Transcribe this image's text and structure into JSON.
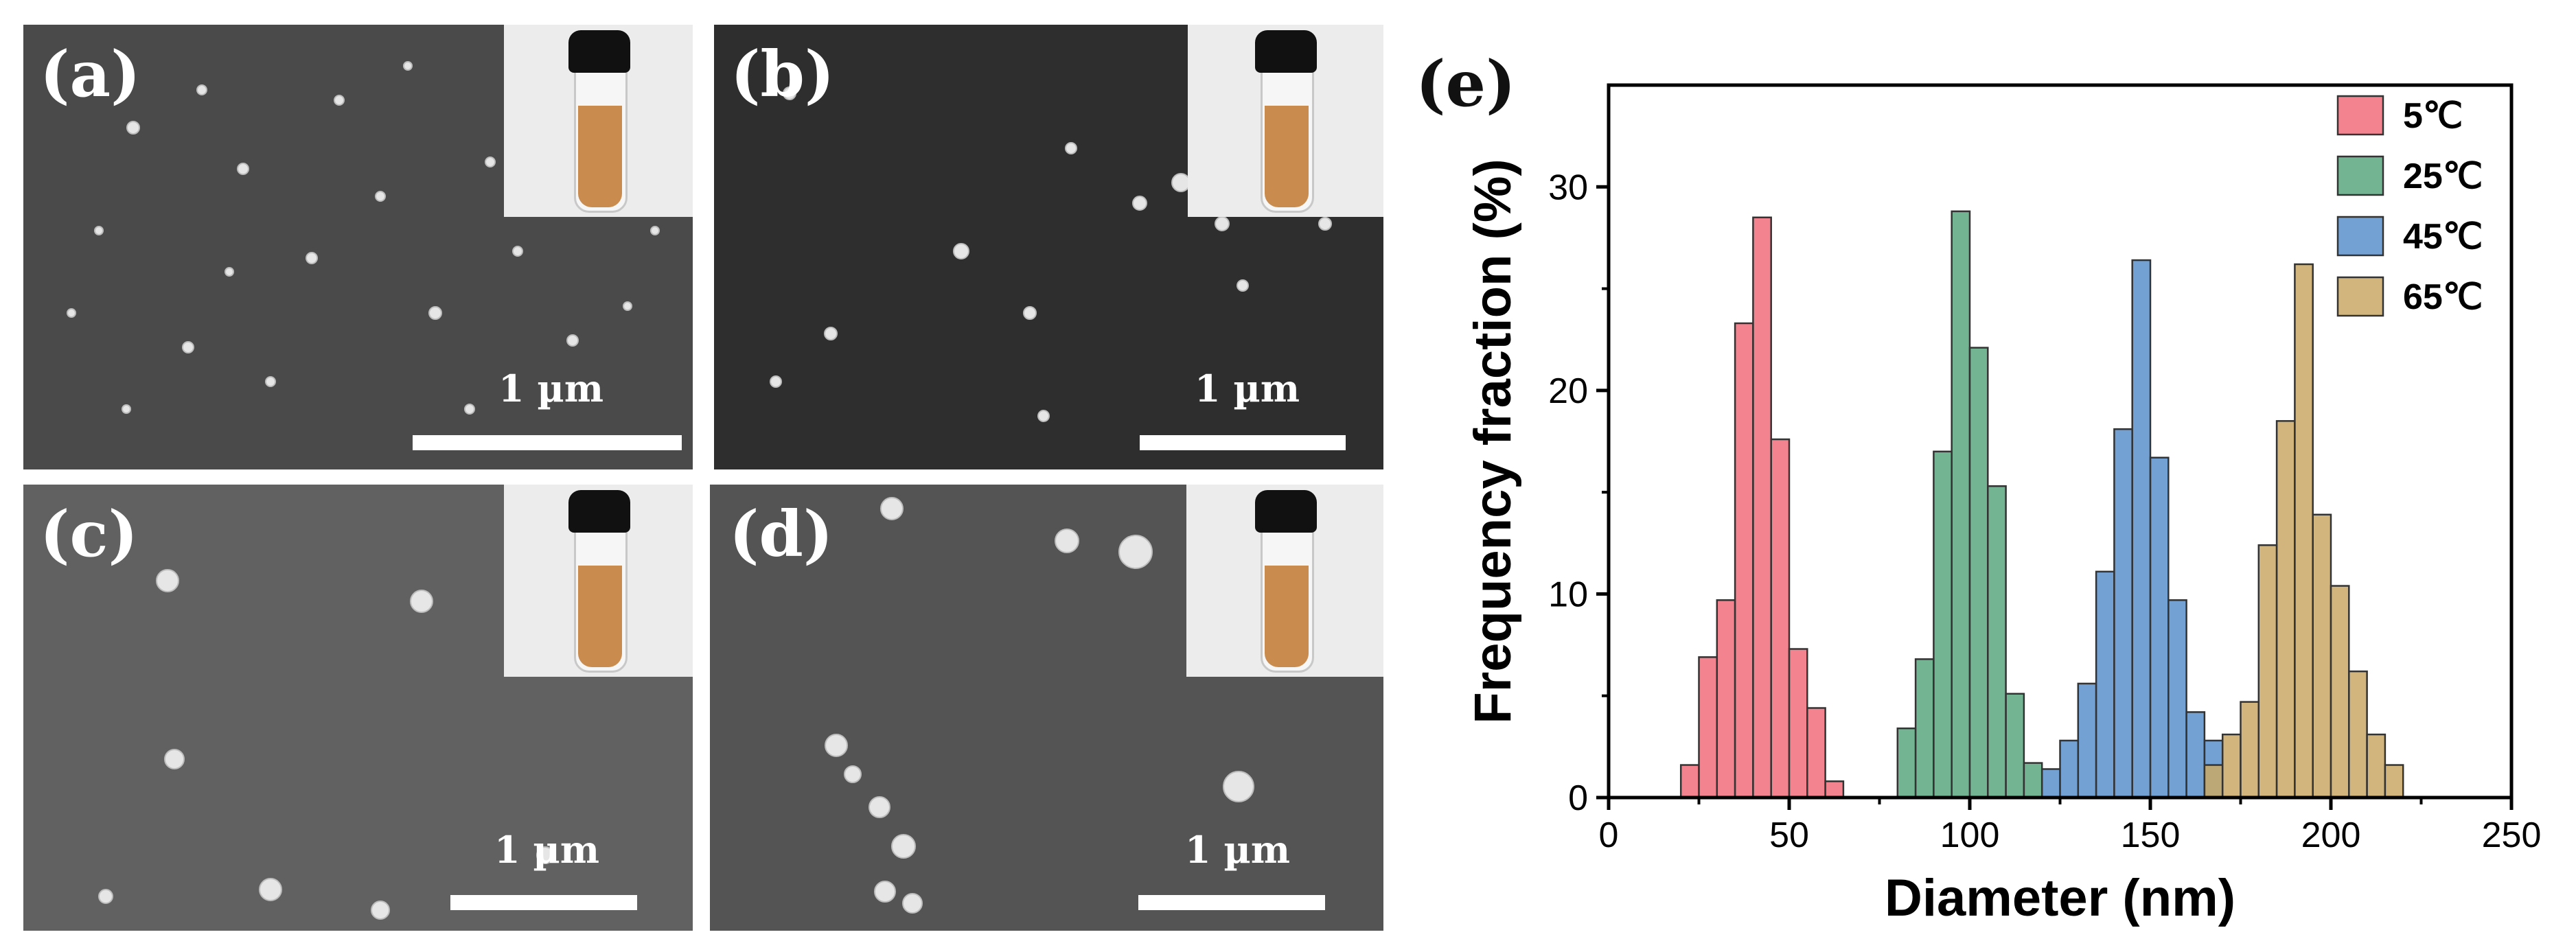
{
  "panels": [
    {
      "id": "a",
      "label": "(a)",
      "scale_label": "1 µm"
    },
    {
      "id": "b",
      "label": "(b)",
      "scale_label": "1 µm"
    },
    {
      "id": "c",
      "label": "(c)",
      "scale_label": "1 µm"
    },
    {
      "id": "d",
      "label": "(d)",
      "scale_label": "1 µm"
    }
  ],
  "chart_label": "(e)",
  "colors": {
    "s5": "#f26d7d",
    "s25": "#5aa880",
    "s45": "#5b90cc",
    "s65": "#c9a866",
    "liquid": "#c98c4e"
  },
  "chart_data": {
    "type": "bar",
    "xlabel": "Diameter (nm)",
    "ylabel": "Frequency fraction (%)",
    "xlim": [
      0,
      250
    ],
    "ylim": [
      0,
      35
    ],
    "xticks": [
      0,
      50,
      100,
      150,
      200,
      250
    ],
    "yticks": [
      0,
      10,
      20,
      30
    ],
    "bin_width": 5,
    "legend_position": "top-right",
    "series": [
      {
        "name": "5℃",
        "color": "#f26d7d",
        "bins": [
          {
            "x": 20,
            "y": 1.6
          },
          {
            "x": 25,
            "y": 6.9
          },
          {
            "x": 30,
            "y": 9.7
          },
          {
            "x": 35,
            "y": 23.3
          },
          {
            "x": 40,
            "y": 28.5
          },
          {
            "x": 45,
            "y": 17.6
          },
          {
            "x": 50,
            "y": 7.3
          },
          {
            "x": 55,
            "y": 4.4
          },
          {
            "x": 60,
            "y": 0.8
          }
        ]
      },
      {
        "name": "25℃",
        "color": "#5aa880",
        "bins": [
          {
            "x": 80,
            "y": 3.4
          },
          {
            "x": 85,
            "y": 6.8
          },
          {
            "x": 90,
            "y": 17.0
          },
          {
            "x": 95,
            "y": 28.8
          },
          {
            "x": 100,
            "y": 22.1
          },
          {
            "x": 105,
            "y": 15.3
          },
          {
            "x": 110,
            "y": 5.1
          },
          {
            "x": 115,
            "y": 1.7
          }
        ]
      },
      {
        "name": "45℃",
        "color": "#5b90cc",
        "bins": [
          {
            "x": 120,
            "y": 1.4
          },
          {
            "x": 125,
            "y": 2.8
          },
          {
            "x": 130,
            "y": 5.6
          },
          {
            "x": 135,
            "y": 11.1
          },
          {
            "x": 140,
            "y": 18.1
          },
          {
            "x": 145,
            "y": 26.4
          },
          {
            "x": 150,
            "y": 16.7
          },
          {
            "x": 155,
            "y": 9.7
          },
          {
            "x": 160,
            "y": 4.2
          },
          {
            "x": 165,
            "y": 2.8
          }
        ]
      },
      {
        "name": "65℃",
        "color": "#c9a866",
        "bins": [
          {
            "x": 165,
            "y": 1.6
          },
          {
            "x": 170,
            "y": 3.1
          },
          {
            "x": 175,
            "y": 4.7
          },
          {
            "x": 180,
            "y": 12.4
          },
          {
            "x": 185,
            "y": 18.5
          },
          {
            "x": 190,
            "y": 26.2
          },
          {
            "x": 195,
            "y": 13.9
          },
          {
            "x": 200,
            "y": 10.4
          },
          {
            "x": 205,
            "y": 6.2
          },
          {
            "x": 210,
            "y": 3.1
          },
          {
            "x": 215,
            "y": 1.6
          }
        ]
      }
    ]
  }
}
